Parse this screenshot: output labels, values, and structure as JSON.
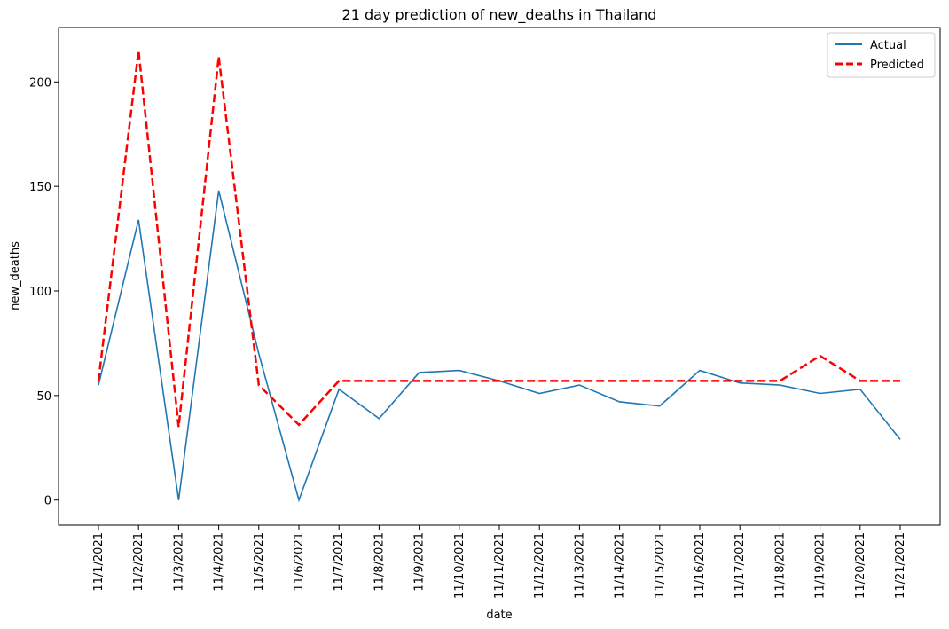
{
  "chart_data": {
    "type": "line",
    "title": "21 day prediction of new_deaths in Thailand",
    "xlabel": "date",
    "ylabel": "new_deaths",
    "categories": [
      "11/1/2021",
      "11/2/2021",
      "11/3/2021",
      "11/4/2021",
      "11/5/2021",
      "11/6/2021",
      "11/7/2021",
      "11/8/2021",
      "11/9/2021",
      "11/10/2021",
      "11/11/2021",
      "11/12/2021",
      "11/13/2021",
      "11/14/2021",
      "11/15/2021",
      "11/16/2021",
      "11/17/2021",
      "11/18/2021",
      "11/19/2021",
      "11/20/2021",
      "11/21/2021"
    ],
    "series": [
      {
        "name": "Actual",
        "color": "#1f77b4",
        "line_style": "solid",
        "values": [
          55,
          134,
          0,
          148,
          70,
          0,
          53,
          39,
          61,
          62,
          57,
          51,
          55,
          47,
          45,
          62,
          56,
          55,
          51,
          53,
          29
        ]
      },
      {
        "name": "Predicted",
        "color": "#ff0000",
        "line_style": "dashed",
        "values": [
          57,
          215,
          35,
          212,
          55,
          36,
          57,
          57,
          57,
          57,
          57,
          57,
          57,
          57,
          57,
          57,
          57,
          57,
          69,
          57,
          57
        ]
      }
    ],
    "yticks": [
      0,
      50,
      100,
      150,
      200
    ],
    "ylim": [
      -12,
      226
    ],
    "grid": false,
    "legend_position": "top-right"
  }
}
